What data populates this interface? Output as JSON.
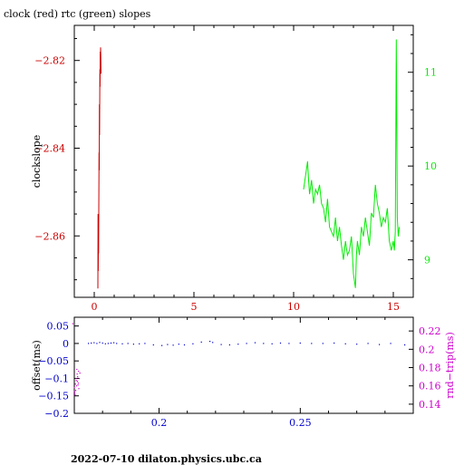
{
  "title": "clock (red) rtc (green) slopes",
  "footer": "2022-07-10 dilaton.physics.ubc.ca",
  "colors": {
    "clock": "#cc0000",
    "rtc": "#00ee00",
    "offset": "#0000cc",
    "rndtrip": "#cc00cc",
    "axis": "#000000"
  },
  "chart_data": [
    {
      "type": "line",
      "xlim": [
        -1,
        16
      ],
      "ylim_left": [
        -2.874,
        -2.812
      ],
      "ylim_right": [
        8.6,
        11.5
      ],
      "ylabel": "clockslope",
      "xticks": [
        0,
        5,
        10,
        15
      ],
      "yticks_left": [
        -2.82,
        -2.84,
        -2.86
      ],
      "yticks_right": [
        9,
        10,
        11
      ],
      "series": [
        {
          "name": "clock",
          "axis": "left",
          "x": [
            0.18,
            0.19,
            0.2,
            0.21,
            0.22,
            0.23,
            0.24,
            0.25,
            0.26,
            0.27,
            0.28,
            0.29,
            0.3,
            0.31,
            0.32,
            0.33,
            0.34
          ],
          "y": [
            -2.872,
            -2.855,
            -2.868,
            -2.86,
            -2.864,
            -2.85,
            -2.841,
            -2.845,
            -2.83,
            -2.837,
            -2.822,
            -2.826,
            -2.818,
            -2.822,
            -2.817,
            -2.82,
            -2.823
          ]
        },
        {
          "name": "rtc",
          "axis": "right",
          "x": [
            10.5,
            10.6,
            10.7,
            10.75,
            10.8,
            10.9,
            11.0,
            11.1,
            11.2,
            11.3,
            11.4,
            11.5,
            11.6,
            11.7,
            11.8,
            11.9,
            12.0,
            12.1,
            12.2,
            12.3,
            12.4,
            12.5,
            12.6,
            12.7,
            12.8,
            12.9,
            13.0,
            13.1,
            13.15,
            13.2,
            13.3,
            13.4,
            13.5,
            13.6,
            13.7,
            13.8,
            13.9,
            14.0,
            14.1,
            14.2,
            14.3,
            14.4,
            14.5,
            14.6,
            14.7,
            14.8,
            14.9,
            15.0,
            15.05,
            15.1,
            15.15,
            15.2,
            15.25,
            15.3
          ],
          "y": [
            9.75,
            9.9,
            10.05,
            9.85,
            9.7,
            9.85,
            9.6,
            9.75,
            9.7,
            9.8,
            9.6,
            9.55,
            9.4,
            9.65,
            9.35,
            9.3,
            9.25,
            9.45,
            9.2,
            9.35,
            9.15,
            9.0,
            9.2,
            9.05,
            9.1,
            9.25,
            8.85,
            8.7,
            9.05,
            9.2,
            9.05,
            9.35,
            9.25,
            9.45,
            9.3,
            9.15,
            9.5,
            9.45,
            9.8,
            9.6,
            9.5,
            9.35,
            9.45,
            9.4,
            9.55,
            9.2,
            9.1,
            9.2,
            9.1,
            9.3,
            11.35,
            9.45,
            9.25,
            9.35
          ]
        }
      ]
    },
    {
      "type": "scatter",
      "xlim": [
        0.17,
        0.29
      ],
      "ylim_left": [
        -0.2,
        0.075
      ],
      "ylim_right": [
        0.13,
        0.235
      ],
      "ylabel_left": "offset(ms)",
      "ylabel_right": "rnd−trip(ms)",
      "xticks": [
        0.2,
        0.25
      ],
      "yticks_left": [
        0.05,
        0,
        -0.05,
        -0.1,
        -0.15,
        -0.2
      ],
      "ytick_labels_left": [
        "0.05",
        "0",
        "−0.05",
        "−0.1",
        "−0.15",
        "−0.2"
      ],
      "yticks_right": [
        0.22,
        0.2,
        0.18,
        0.16,
        0.14
      ],
      "series": [
        {
          "name": "offset",
          "axis": "left",
          "x": [
            0.175,
            0.176,
            0.177,
            0.178,
            0.179,
            0.18,
            0.181,
            0.182,
            0.183,
            0.184,
            0.185,
            0.187,
            0.189,
            0.191,
            0.193,
            0.195,
            0.198,
            0.201,
            0.203,
            0.205,
            0.207,
            0.209,
            0.212,
            0.215,
            0.218,
            0.219,
            0.222,
            0.225,
            0.228,
            0.231,
            0.234,
            0.237,
            0.24,
            0.243,
            0.246,
            0.25,
            0.254,
            0.258,
            0.262,
            0.266,
            0.27,
            0.274,
            0.278,
            0.282,
            0.287
          ],
          "y": [
            0.0,
            0.001,
            0.002,
            0.0,
            0.003,
            0.001,
            -0.001,
            0.0,
            0.001,
            0.002,
            0.0,
            -0.001,
            0.0,
            -0.002,
            -0.001,
            0.0,
            -0.004,
            -0.006,
            -0.003,
            -0.005,
            -0.002,
            -0.004,
            -0.001,
            0.004,
            0.006,
            0.003,
            -0.003,
            -0.004,
            -0.002,
            0.0,
            0.002,
            0.0,
            -0.001,
            0.001,
            0.0,
            0.001,
            0.0,
            0.0,
            0.001,
            -0.001,
            -0.002,
            0.0,
            -0.003,
            0.0,
            -0.004
          ]
        },
        {
          "name": "rnd-trip",
          "axis": "right",
          "x": [
            0.1695,
            0.17,
            0.1702,
            0.1704,
            0.1705,
            0.1706,
            0.1708,
            0.171,
            0.1711,
            0.1712,
            0.1714,
            0.1715,
            0.1716,
            0.1718,
            0.172,
            0.1703,
            0.1707,
            0.1709,
            0.1713,
            0.1701
          ],
          "y": [
            0.228,
            0.158,
            0.152,
            0.162,
            0.155,
            0.168,
            0.16,
            0.173,
            0.165,
            0.17,
            0.163,
            0.176,
            0.157,
            0.168,
            0.174,
            0.15,
            0.166,
            0.178,
            0.161,
            0.154
          ]
        }
      ]
    }
  ]
}
